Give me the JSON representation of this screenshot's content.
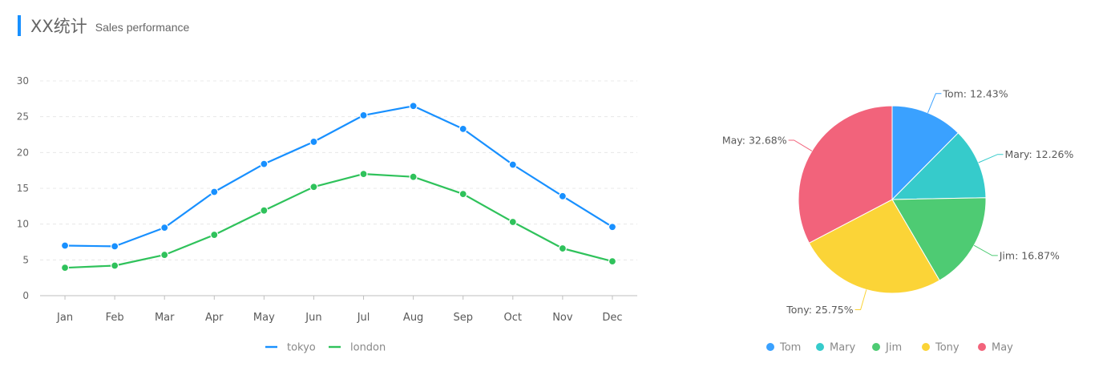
{
  "header": {
    "title": "XX统计",
    "subtitle": "Sales performance"
  },
  "chart_data": [
    {
      "type": "line",
      "title": "",
      "xlabel": "",
      "ylabel": "",
      "categories": [
        "Jan",
        "Feb",
        "Mar",
        "Apr",
        "May",
        "Jun",
        "Jul",
        "Aug",
        "Sep",
        "Oct",
        "Nov",
        "Dec"
      ],
      "ylim": [
        0,
        30
      ],
      "yticks": [
        0,
        5,
        10,
        15,
        20,
        25,
        30
      ],
      "grid": true,
      "legend": "bottom",
      "series": [
        {
          "name": "tokyo",
          "color": "#1890ff",
          "values": [
            7.0,
            6.9,
            9.5,
            14.5,
            18.4,
            21.5,
            25.2,
            26.5,
            23.3,
            18.3,
            13.9,
            9.6
          ]
        },
        {
          "name": "london",
          "color": "#2fc25b",
          "values": [
            3.9,
            4.2,
            5.7,
            8.5,
            11.9,
            15.2,
            17.0,
            16.6,
            14.2,
            10.3,
            6.6,
            4.8
          ]
        }
      ]
    },
    {
      "type": "pie",
      "title": "",
      "legend": "bottom",
      "slices": [
        {
          "name": "Tom",
          "percent": 12.43,
          "label": "Tom: 12.43%",
          "color": "#3aa1ff"
        },
        {
          "name": "Mary",
          "percent": 12.26,
          "label": "Mary: 12.26%",
          "color": "#36cbcb"
        },
        {
          "name": "Jim",
          "percent": 16.87,
          "label": "Jim: 16.87%",
          "color": "#4ecb73"
        },
        {
          "name": "Tony",
          "percent": 25.75,
          "label": "Tony: 25.75%",
          "color": "#fbd437"
        },
        {
          "name": "May",
          "percent": 32.68,
          "label": "May: 32.68%",
          "color": "#f2637b"
        }
      ]
    }
  ]
}
